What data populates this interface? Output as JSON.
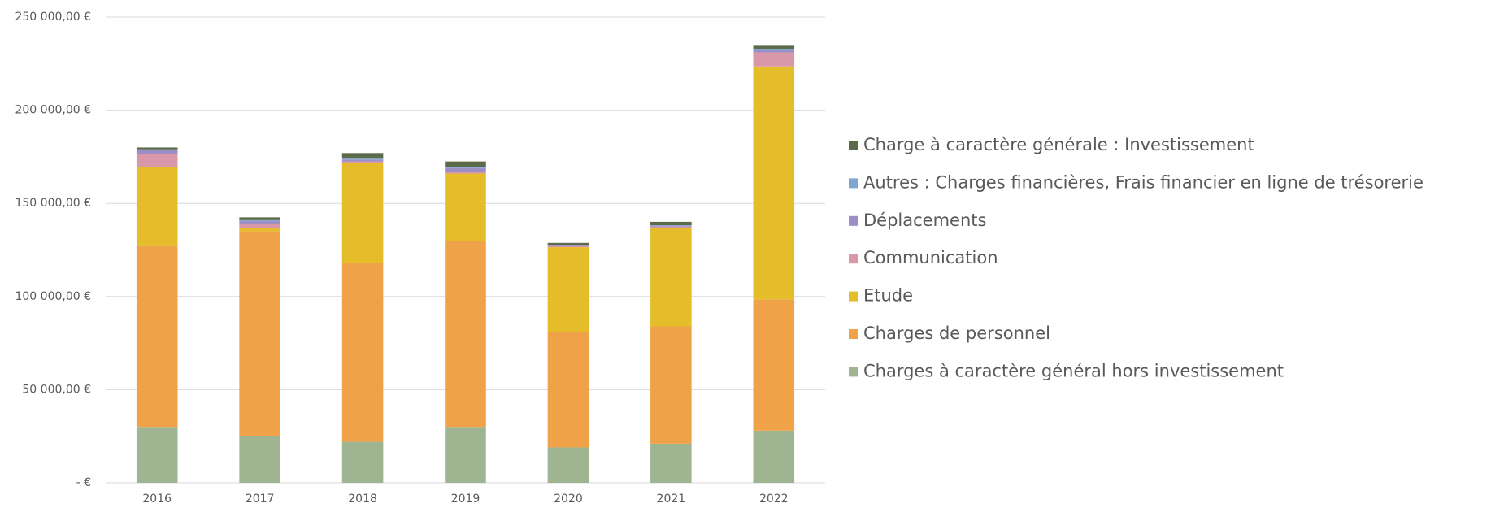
{
  "chart_data": {
    "type": "stacked_bar",
    "categories": [
      "2016",
      "2017",
      "2018",
      "2019",
      "2020",
      "2021",
      "2022"
    ],
    "series": [
      {
        "name": "Charges à caractère général hors investissement",
        "color": "#9fb592",
        "values": [
          30000,
          25000,
          22000,
          30000,
          19000,
          21000,
          28000
        ]
      },
      {
        "name": "Charges de personnel",
        "color": "#f0a248",
        "values": [
          97000,
          110000,
          96000,
          100000,
          62000,
          63000,
          70500
        ]
      },
      {
        "name": "Etude",
        "color": "#e5bd2b",
        "values": [
          42500,
          2000,
          53500,
          36000,
          45500,
          53000,
          125000
        ]
      },
      {
        "name": "Communication",
        "color": "#d898aa",
        "values": [
          7000,
          2000,
          1000,
          1000,
          500,
          500,
          7500
        ]
      },
      {
        "name": "Déplacements",
        "color": "#9c8fc6",
        "values": [
          2000,
          1500,
          1000,
          2000,
          500,
          500,
          1500
        ]
      },
      {
        "name": "Autres : Charges financières, Frais financier en ligne de trésorerie",
        "color": "#7fa6cf",
        "values": [
          500,
          500,
          500,
          500,
          300,
          300,
          500
        ]
      },
      {
        "name": "Charge à caractère générale : Investissement",
        "color": "#5b6a48",
        "values": [
          1000,
          1500,
          3000,
          3000,
          1000,
          1800,
          2000
        ]
      }
    ],
    "ylim": [
      0,
      250000
    ],
    "yticks": [
      {
        "value": 0,
        "label": "-   €"
      },
      {
        "value": 50000,
        "label": "50 000,00 €"
      },
      {
        "value": 100000,
        "label": "100 000,00 €"
      },
      {
        "value": 150000,
        "label": "150 000,00 €"
      },
      {
        "value": 200000,
        "label": "200 000,00 €"
      },
      {
        "value": 250000,
        "label": "250 000,00 €"
      }
    ],
    "grid": true,
    "legend": "right"
  }
}
